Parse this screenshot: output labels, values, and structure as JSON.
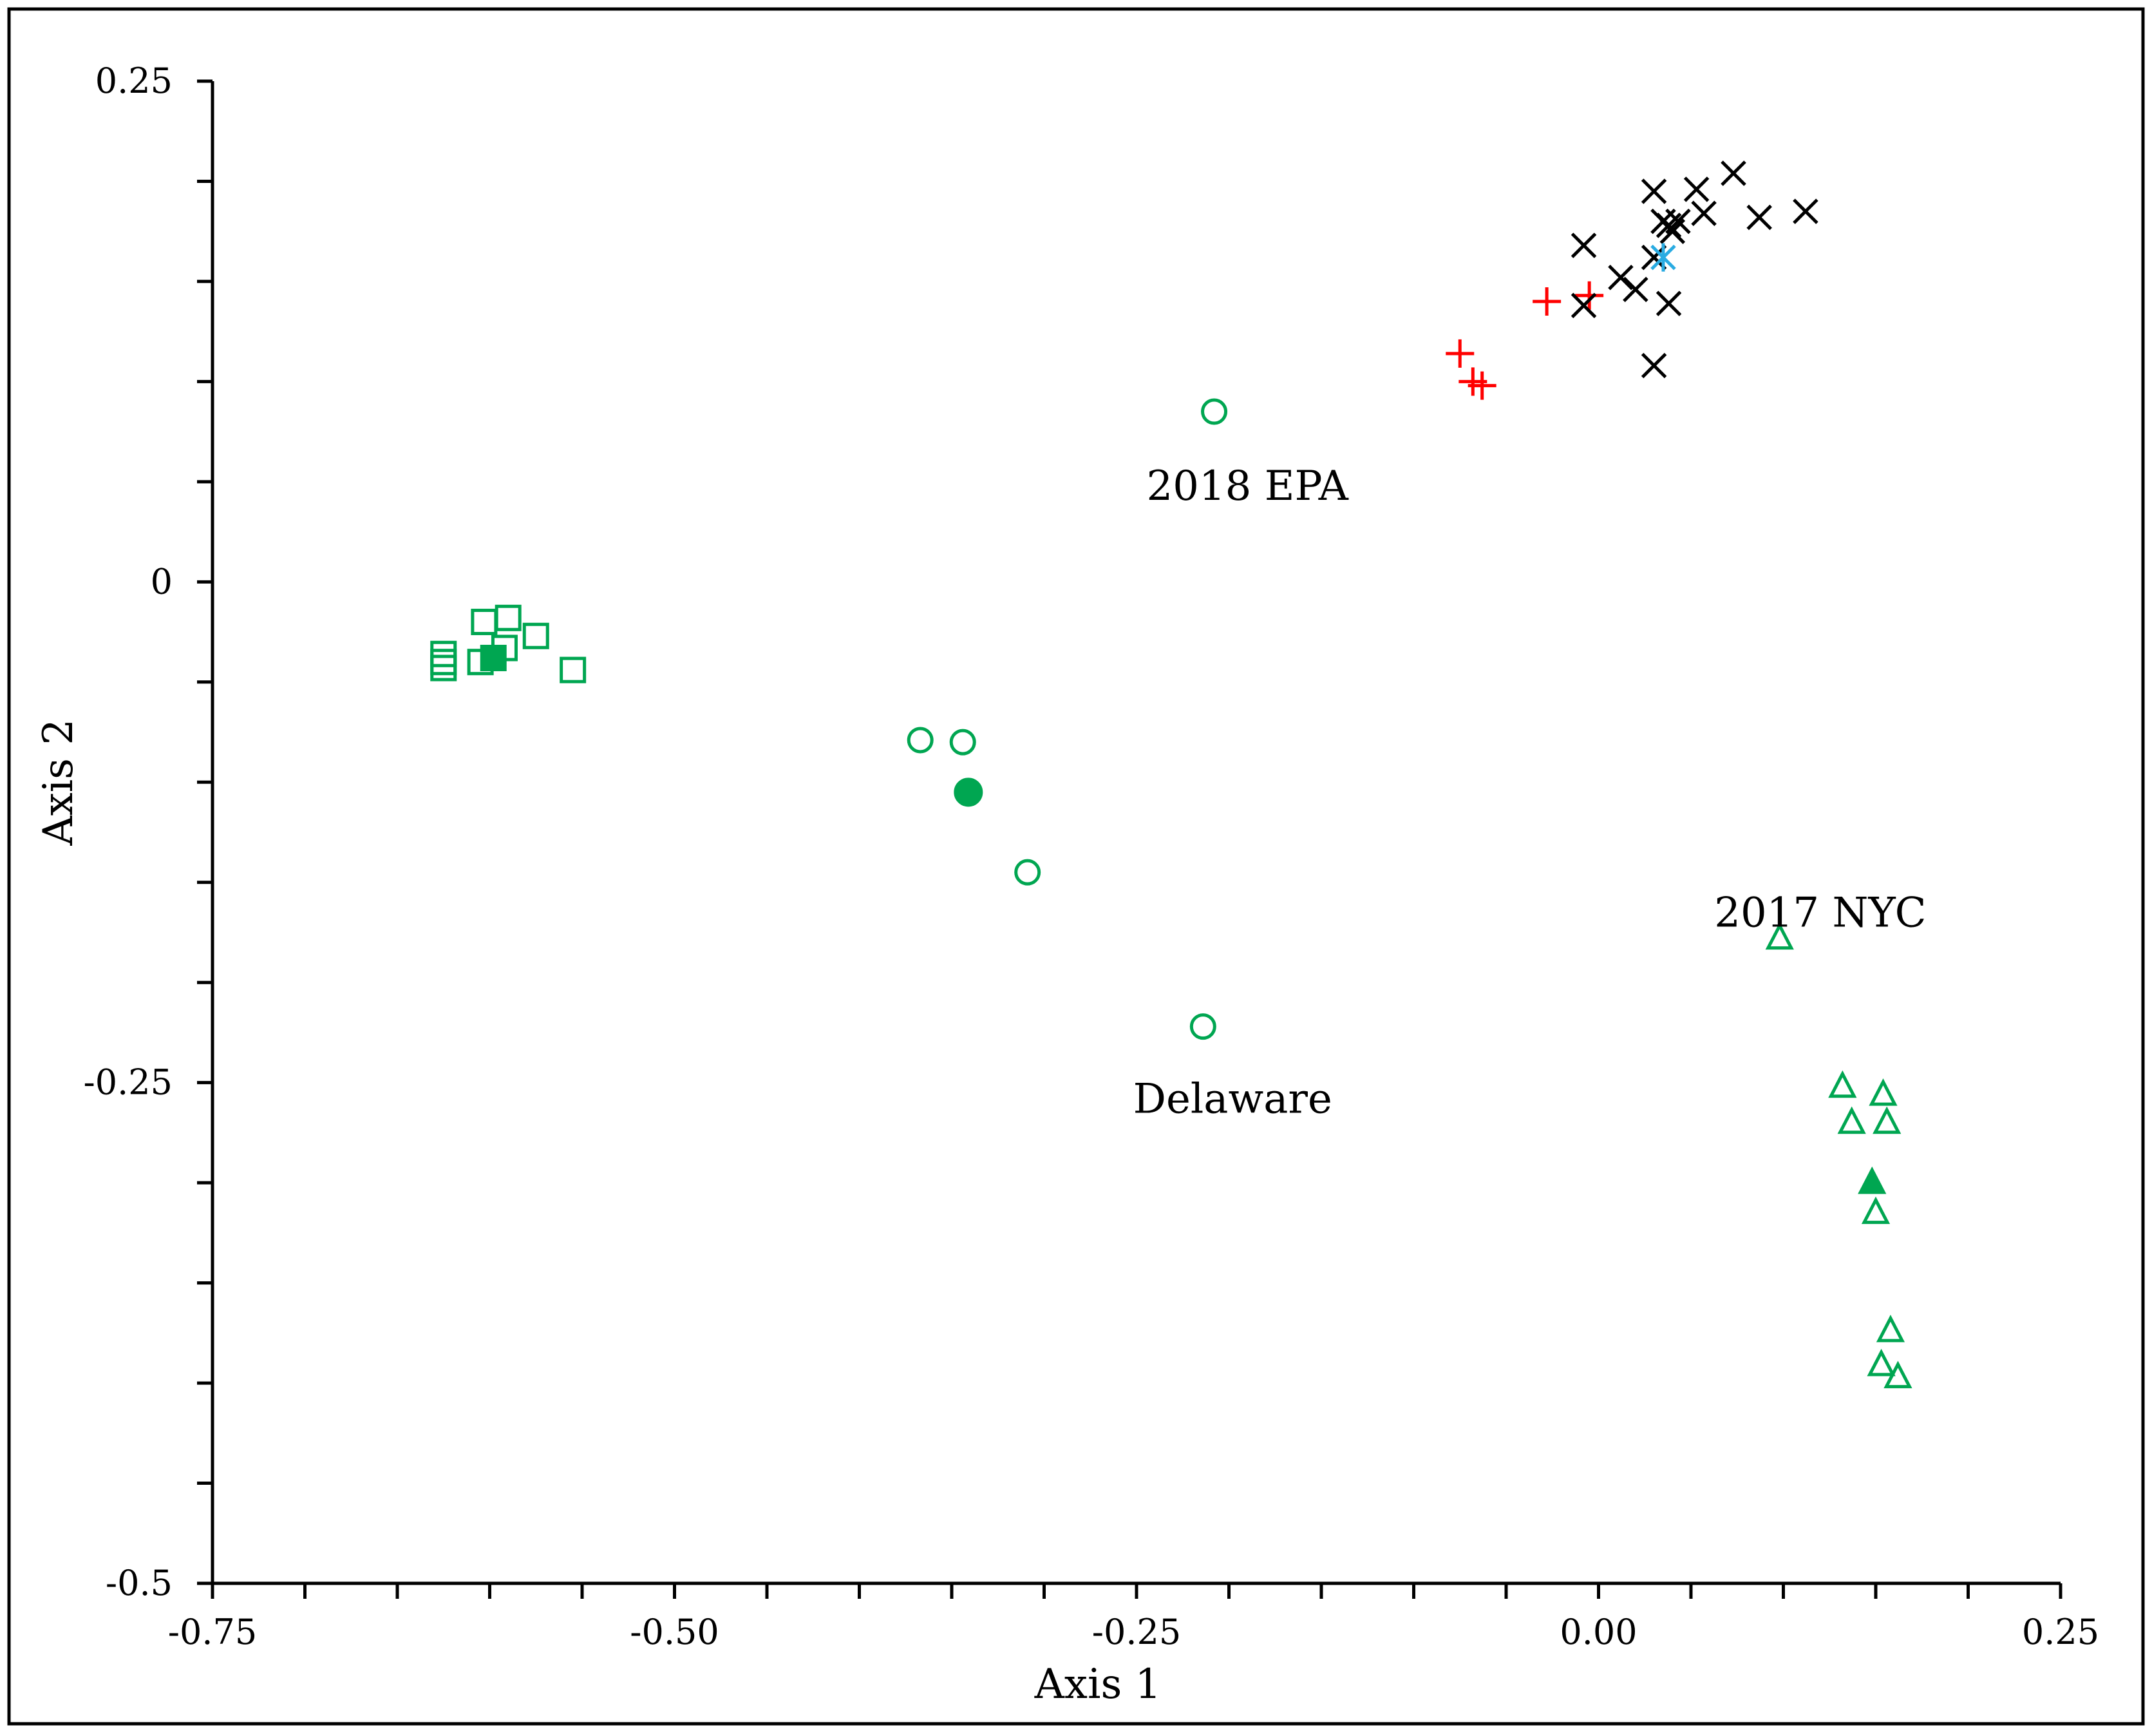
{
  "chart_data": {
    "type": "scatter",
    "title": "",
    "xlabel": "Axis 1",
    "ylabel": "Axis 2",
    "xlim": [
      -0.75,
      0.25
    ],
    "ylim": [
      -0.5,
      0.25
    ],
    "x_ticks": [
      -0.75,
      -0.5,
      -0.25,
      0.0,
      0.25
    ],
    "x_tick_labels": [
      "-0.75",
      "-0.50",
      "-0.25",
      "0.00",
      "0.25"
    ],
    "y_ticks": [
      -0.5,
      -0.25,
      0,
      0.25
    ],
    "y_tick_labels": [
      "-0.5",
      "-0.25",
      "0",
      "0.25"
    ],
    "grid": false,
    "legend": "none",
    "annotations": [
      {
        "text": "2018 EPA",
        "x": -0.19,
        "y": 0.048
      },
      {
        "text": "Delaware",
        "x": -0.198,
        "y": -0.258
      },
      {
        "text": "2017 NYC",
        "x": 0.12,
        "y": -0.165
      }
    ],
    "series": [
      {
        "marker": "square-open",
        "color": "#00a651",
        "points": [
          [
            -0.625,
            -0.036
          ],
          [
            -0.625,
            -0.04
          ],
          [
            -0.625,
            -0.043
          ],
          [
            -0.603,
            -0.02
          ],
          [
            -0.59,
            -0.018
          ],
          [
            -0.605,
            -0.04
          ],
          [
            -0.592,
            -0.033
          ],
          [
            -0.575,
            -0.027
          ],
          [
            -0.555,
            -0.044
          ]
        ]
      },
      {
        "marker": "square-filled",
        "color": "#00a651",
        "points": [
          [
            -0.598,
            -0.038
          ]
        ]
      },
      {
        "marker": "circle-open",
        "color": "#00a651",
        "points": [
          [
            -0.208,
            0.085
          ],
          [
            -0.367,
            -0.079
          ],
          [
            -0.344,
            -0.08
          ],
          [
            -0.309,
            -0.145
          ],
          [
            -0.214,
            -0.222
          ]
        ]
      },
      {
        "marker": "circle-filled",
        "color": "#00a651",
        "points": [
          [
            -0.341,
            -0.105
          ]
        ]
      },
      {
        "marker": "triangle-open",
        "color": "#00a651",
        "points": [
          [
            0.098,
            -0.178
          ],
          [
            0.132,
            -0.252
          ],
          [
            0.154,
            -0.256
          ],
          [
            0.137,
            -0.27
          ],
          [
            0.156,
            -0.27
          ],
          [
            0.15,
            -0.315
          ],
          [
            0.158,
            -0.374
          ],
          [
            0.153,
            -0.391
          ],
          [
            0.162,
            -0.397
          ]
        ]
      },
      {
        "marker": "triangle-filled",
        "color": "#00a651",
        "points": [
          [
            0.148,
            -0.3
          ]
        ]
      },
      {
        "marker": "plus",
        "color": "#ff0000",
        "points": [
          [
            -0.028,
            0.14
          ],
          [
            -0.005,
            0.143
          ],
          [
            -0.075,
            0.114
          ],
          [
            -0.068,
            0.1
          ],
          [
            -0.063,
            0.098
          ]
        ]
      },
      {
        "marker": "x",
        "color": "#000000",
        "points": [
          [
            -0.008,
            0.168
          ],
          [
            -0.008,
            0.138
          ],
          [
            0.012,
            0.152
          ],
          [
            0.02,
            0.146
          ],
          [
            0.03,
            0.195
          ],
          [
            0.03,
            0.162
          ],
          [
            0.035,
            0.18
          ],
          [
            0.038,
            0.178
          ],
          [
            0.04,
            0.175
          ],
          [
            0.038,
            0.139
          ],
          [
            0.043,
            0.18
          ],
          [
            0.053,
            0.196
          ],
          [
            0.057,
            0.184
          ],
          [
            0.073,
            0.204
          ],
          [
            0.087,
            0.182
          ],
          [
            0.112,
            0.185
          ],
          [
            0.03,
            0.108
          ]
        ]
      },
      {
        "marker": "asterisk",
        "color": "#29abe2",
        "points": [
          [
            0.035,
            0.162
          ]
        ]
      }
    ]
  }
}
